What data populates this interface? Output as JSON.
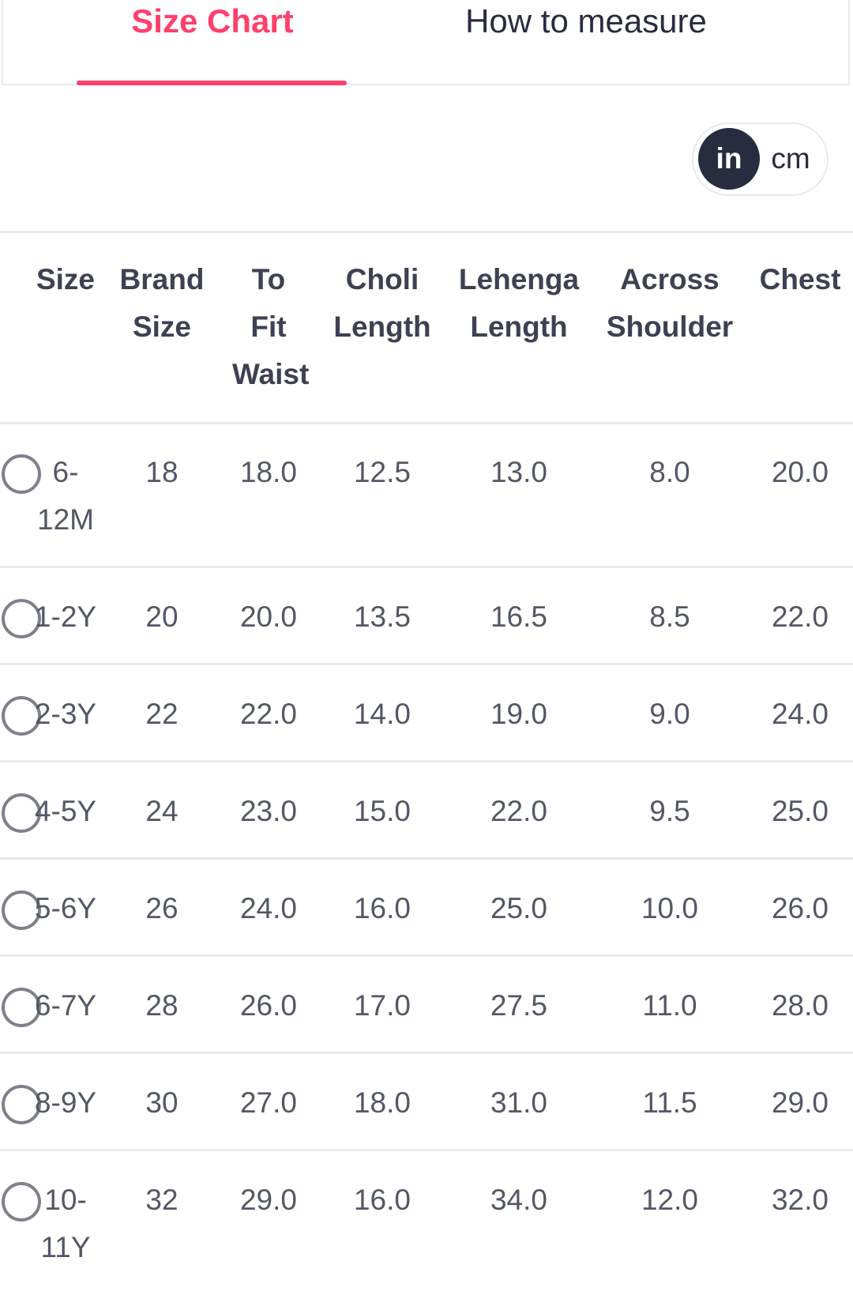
{
  "tabs": [
    "Size Chart",
    "How to measure"
  ],
  "units": [
    "in",
    "cm"
  ],
  "table": {
    "headers": [
      "Size",
      "Brand Size",
      "To Fit Waist",
      "Choli Length",
      "Lehenga Length",
      "Across Shoulder",
      "Chest"
    ],
    "rows": [
      [
        "6-12M",
        "18",
        "18.0",
        "12.5",
        "13.0",
        "8.0",
        "20.0"
      ],
      [
        "1-2Y",
        "20",
        "20.0",
        "13.5",
        "16.5",
        "8.5",
        "22.0"
      ],
      [
        "2-3Y",
        "22",
        "22.0",
        "14.0",
        "19.0",
        "9.0",
        "24.0"
      ],
      [
        "4-5Y",
        "24",
        "23.0",
        "15.0",
        "22.0",
        "9.5",
        "25.0"
      ],
      [
        "5-6Y",
        "26",
        "24.0",
        "16.0",
        "25.0",
        "10.0",
        "26.0"
      ],
      [
        "6-7Y",
        "28",
        "26.0",
        "17.0",
        "27.5",
        "11.0",
        "28.0"
      ],
      [
        "8-9Y",
        "30",
        "27.0",
        "18.0",
        "31.0",
        "11.5",
        "29.0"
      ],
      [
        "10-11Y",
        "32",
        "29.0",
        "16.0",
        "34.0",
        "12.0",
        "32.0"
      ]
    ]
  }
}
